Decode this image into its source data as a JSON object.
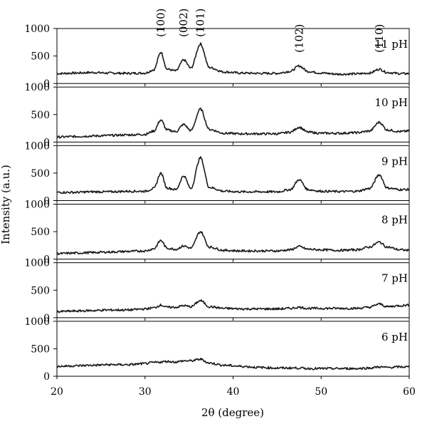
{
  "chart_data": {
    "type": "line",
    "xlabel": "2θ (degree)",
    "ylabel": "Intensity (a.u.)",
    "xlim": [
      20,
      60
    ],
    "x_ticks": [
      20,
      30,
      40,
      50,
      60
    ],
    "ylim": [
      0,
      1000
    ],
    "y_ticks": [
      0,
      500,
      1000
    ],
    "grid": false,
    "peak_labels": [
      {
        "text": "(100)",
        "x": 31.8
      },
      {
        "text": "(002)",
        "x": 34.4
      },
      {
        "text": "(101)",
        "x": 36.3
      },
      {
        "text": "(102)",
        "x": 47.5
      },
      {
        "text": "(110)",
        "x": 56.6
      }
    ],
    "series": [
      {
        "name": "11 pH",
        "x": [
          20,
          22,
          24,
          26,
          28,
          30,
          31,
          31.8,
          32.5,
          33.5,
          34.4,
          35.2,
          36.3,
          37.3,
          39,
          41,
          43,
          45,
          46.5,
          47.5,
          48.5,
          50,
          52,
          54,
          55.5,
          56.6,
          57.5,
          59,
          60
        ],
        "values": [
          180,
          190,
          200,
          190,
          185,
          190,
          250,
          570,
          260,
          230,
          430,
          280,
          720,
          290,
          210,
          190,
          185,
          185,
          220,
          320,
          220,
          190,
          170,
          175,
          190,
          260,
          200,
          180,
          180
        ]
      },
      {
        "name": "10 pH",
        "x": [
          20,
          22,
          24,
          26,
          28,
          30,
          31,
          31.8,
          32.5,
          33.5,
          34.4,
          35.2,
          36.3,
          37.3,
          39,
          41,
          43,
          45,
          46.5,
          47.5,
          48.5,
          50,
          52,
          54,
          55.5,
          56.6,
          57.5,
          59,
          60
        ],
        "values": [
          90,
          100,
          110,
          120,
          130,
          140,
          200,
          400,
          220,
          190,
          320,
          210,
          600,
          230,
          160,
          150,
          150,
          150,
          180,
          270,
          180,
          160,
          160,
          170,
          200,
          360,
          220,
          190,
          200
        ]
      },
      {
        "name": "9 pH",
        "x": [
          20,
          22,
          24,
          26,
          28,
          30,
          31,
          31.8,
          32.5,
          33.5,
          34.4,
          35.2,
          36.3,
          37.3,
          39,
          41,
          43,
          45,
          46.5,
          47.5,
          48.5,
          50,
          52,
          54,
          55.5,
          56.6,
          57.5,
          59,
          60
        ],
        "values": [
          150,
          150,
          160,
          160,
          170,
          170,
          220,
          500,
          230,
          200,
          450,
          220,
          780,
          240,
          170,
          160,
          160,
          160,
          200,
          380,
          200,
          170,
          165,
          170,
          220,
          470,
          230,
          200,
          200
        ]
      },
      {
        "name": "8 pH",
        "x": [
          20,
          22,
          24,
          26,
          28,
          30,
          31,
          31.8,
          32.5,
          33.5,
          34.4,
          35.2,
          36.3,
          37.3,
          39,
          41,
          43,
          45,
          46.5,
          47.5,
          48.5,
          50,
          52,
          54,
          55.5,
          56.6,
          57.5,
          59,
          60
        ],
        "values": [
          100,
          110,
          120,
          130,
          140,
          150,
          190,
          340,
          200,
          180,
          240,
          200,
          500,
          220,
          160,
          150,
          150,
          150,
          170,
          230,
          180,
          170,
          160,
          170,
          220,
          310,
          220,
          170,
          160
        ]
      },
      {
        "name": "7 pH",
        "x": [
          20,
          22,
          24,
          26,
          28,
          30,
          31,
          31.8,
          32.5,
          33.5,
          34.4,
          35.2,
          36.3,
          37.3,
          39,
          41,
          43,
          45,
          46.5,
          47.5,
          48.5,
          50,
          52,
          54,
          55.5,
          56.6,
          57.5,
          59,
          60
        ],
        "values": [
          110,
          120,
          130,
          140,
          140,
          160,
          180,
          230,
          190,
          190,
          220,
          200,
          310,
          200,
          170,
          160,
          160,
          160,
          170,
          190,
          170,
          170,
          170,
          170,
          190,
          250,
          200,
          220,
          230
        ]
      },
      {
        "name": "6 pH",
        "x": [
          20,
          22,
          24,
          26,
          28,
          30,
          31,
          31.8,
          32.5,
          33.5,
          34.4,
          35.2,
          36.3,
          37.3,
          39,
          41,
          43,
          45,
          46.5,
          47.5,
          48.5,
          50,
          52,
          54,
          55.5,
          56.6,
          57.5,
          59,
          60
        ],
        "values": [
          180,
          190,
          200,
          210,
          210,
          230,
          250,
          260,
          270,
          260,
          280,
          280,
          310,
          240,
          200,
          180,
          160,
          150,
          150,
          150,
          140,
          140,
          140,
          140,
          150,
          170,
          160,
          170,
          170
        ]
      }
    ]
  }
}
